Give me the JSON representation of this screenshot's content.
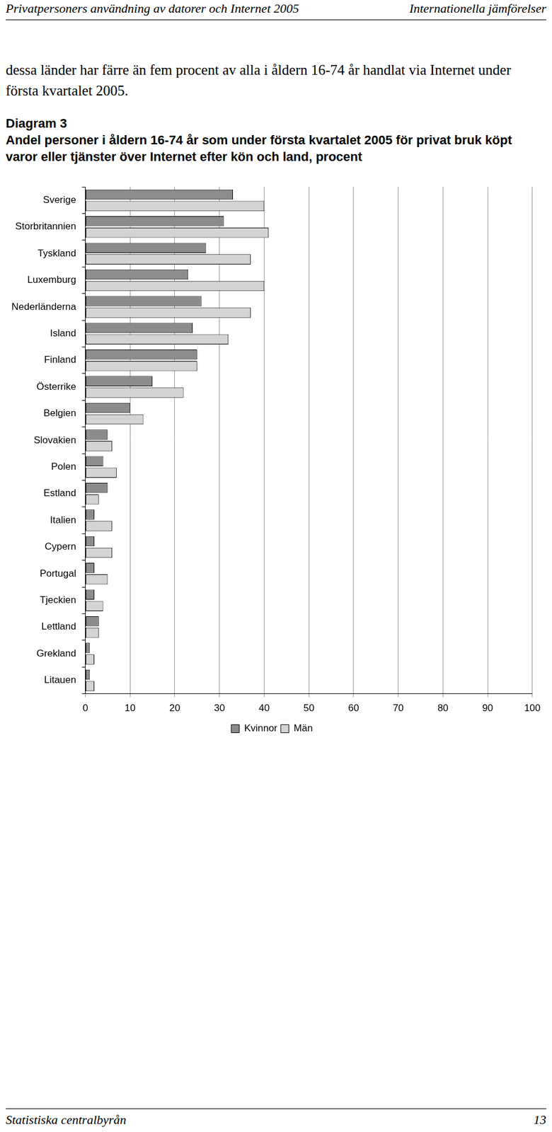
{
  "page": {
    "header_left": "Privatpersoners användning av datorer och Internet 2005",
    "header_right": "Internationella jämförelser",
    "paragraph": "dessa länder har färre än fem procent av alla i åldern 16-74 år handlat via Internet under första kvartalet 2005.",
    "footer_left": "Statistiska centralbyrån",
    "footer_right": "13"
  },
  "chart_data": {
    "type": "bar",
    "orientation": "horizontal",
    "title_label": "Diagram 3",
    "title": "Andel personer i åldern 16-74 år som under första kvartalet 2005 för privat bruk köpt varor eller tjänster över Internet efter kön och land, procent",
    "categories": [
      "Sverige",
      "Storbritannien",
      "Tyskland",
      "Luxemburg",
      "Nederländerna",
      "Island",
      "Finland",
      "Österrike",
      "Belgien",
      "Slovakien",
      "Polen",
      "Estland",
      "Italien",
      "Cypern",
      "Portugal",
      "Tjeckien",
      "Lettland",
      "Grekland",
      "Litauen"
    ],
    "series": [
      {
        "name": "Kvinnor",
        "color": "#8c8c8c",
        "values": [
          33,
          31,
          27,
          23,
          26,
          24,
          25,
          15,
          10,
          5,
          4,
          5,
          2,
          2,
          2,
          2,
          3,
          1,
          1
        ]
      },
      {
        "name": "Män",
        "color": "#d4d4d4",
        "values": [
          40,
          41,
          37,
          40,
          37,
          32,
          25,
          22,
          13,
          6,
          7,
          3,
          6,
          6,
          5,
          4,
          3,
          2,
          2
        ]
      }
    ],
    "xlim": [
      0,
      100
    ],
    "xticks": [
      0,
      10,
      20,
      30,
      40,
      50,
      60,
      70,
      80,
      90,
      100
    ],
    "grid": true,
    "legend": "bottom"
  }
}
